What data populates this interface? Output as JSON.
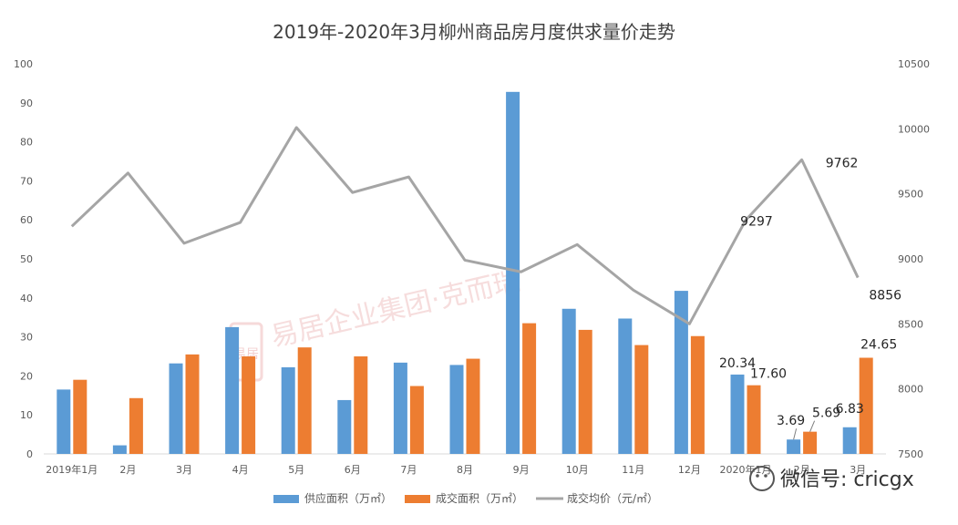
{
  "chart_data": {
    "type": "bar",
    "title": "2019年-2020年3月柳州商品房月度供求量价走势",
    "categories": [
      "2019年1月",
      "2月",
      "3月",
      "4月",
      "5月",
      "6月",
      "7月",
      "8月",
      "9月",
      "10月",
      "11月",
      "12月",
      "2020年1月",
      "2月",
      "3月"
    ],
    "series": [
      {
        "name": "供应面积（万㎡）",
        "type": "bar",
        "axis": "left",
        "color": "#5B9BD5",
        "values": [
          16.5,
          2.2,
          23.2,
          32.5,
          22.2,
          13.8,
          23.4,
          22.8,
          92.8,
          37.2,
          34.7,
          41.8,
          20.34,
          3.69,
          6.83
        ]
      },
      {
        "name": "成交面积（万㎡）",
        "type": "bar",
        "axis": "left",
        "color": "#ED7D31",
        "values": [
          19.0,
          14.3,
          25.5,
          25.0,
          27.3,
          25.0,
          17.4,
          24.4,
          33.5,
          31.8,
          27.9,
          30.2,
          17.6,
          5.69,
          24.65
        ]
      },
      {
        "name": "成交均价（元/㎡）",
        "type": "line",
        "axis": "right",
        "color": "#A5A5A5",
        "values": [
          9250,
          9660,
          9120,
          9280,
          10010,
          9510,
          9630,
          8990,
          8900,
          9110,
          8760,
          8500,
          9297,
          9762,
          8856
        ]
      }
    ],
    "left_axis": {
      "min": 0,
      "max": 100,
      "step": 10
    },
    "right_axis": {
      "min": 7500,
      "max": 10500,
      "step": 500
    },
    "grid": false,
    "legend": "bottom",
    "data_labels": [
      {
        "series": 0,
        "index": 12,
        "text": "20.34"
      },
      {
        "series": 1,
        "index": 12,
        "text": "17.60"
      },
      {
        "series": 0,
        "index": 13,
        "text": "3.69"
      },
      {
        "series": 1,
        "index": 13,
        "text": "5.69"
      },
      {
        "series": 0,
        "index": 14,
        "text": "6.83"
      },
      {
        "series": 1,
        "index": 14,
        "text": "24.65"
      },
      {
        "series": 2,
        "index": 12,
        "text": "9297"
      },
      {
        "series": 2,
        "index": 13,
        "text": "9762"
      },
      {
        "series": 2,
        "index": 14,
        "text": "8856"
      }
    ]
  },
  "watermark": {
    "text": "易居企业集团·克而瑞",
    "stamp": "易居"
  },
  "wechat": {
    "text": "微信号: cricgx"
  }
}
